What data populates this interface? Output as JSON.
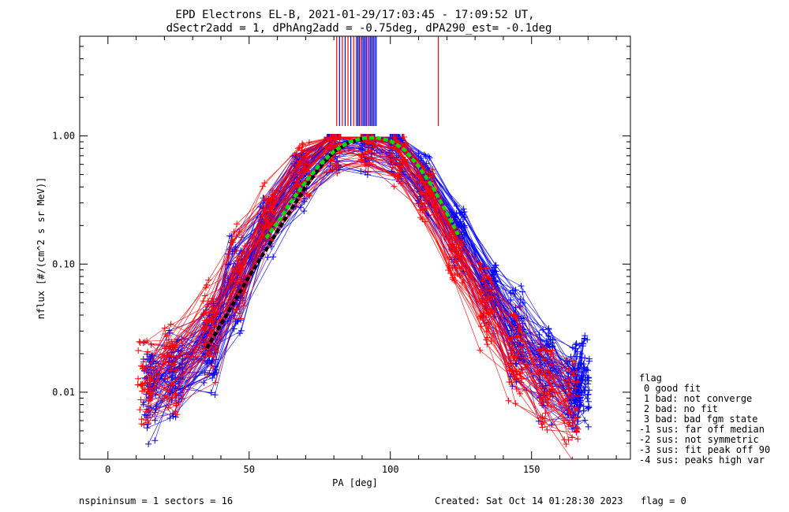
{
  "chart_data": {
    "type": "scatter",
    "title": "EPD Electrons EL-B, 2021-01-29/17:03:45 - 17:09:52 UT,",
    "subtitle": "dSectr2add = 1, dPhAng2add = -0.75deg, dPA290_est=  -0.1deg",
    "xlabel": "PA [deg]",
    "ylabel": "nflux [#/(cm^2 s sr MeV)]",
    "xlim": [
      -10,
      185
    ],
    "ylim": [
      0.003,
      6.0
    ],
    "yscale": "log",
    "x_ticks": [
      {
        "v": 0,
        "label": "0"
      },
      {
        "v": 50,
        "label": "50"
      },
      {
        "v": 100,
        "label": "100"
      },
      {
        "v": 150,
        "label": "150"
      }
    ],
    "y_ticks": [
      {
        "v": 0.01,
        "label": "0.01"
      },
      {
        "v": 0.1,
        "label": "0.10"
      },
      {
        "v": 1.0,
        "label": "1.00"
      }
    ],
    "series": [
      {
        "color": "#0000ff",
        "marker": "+",
        "x": [
          15,
          24,
          36,
          45,
          56,
          68,
          80,
          92,
          102,
          112,
          124,
          135,
          145,
          155,
          165,
          168
        ],
        "y": [
          0.01,
          0.013,
          0.022,
          0.065,
          0.19,
          0.45,
          0.85,
          0.88,
          0.72,
          0.42,
          0.16,
          0.06,
          0.025,
          0.014,
          0.01,
          0.012
        ]
      },
      {
        "color": "#ff0000",
        "marker": "+",
        "x": [
          13,
          22,
          36,
          46,
          57,
          69,
          80,
          92,
          103,
          113,
          123,
          134,
          144,
          155,
          164
        ],
        "y": [
          0.012,
          0.016,
          0.032,
          0.09,
          0.25,
          0.55,
          0.95,
          0.9,
          0.7,
          0.35,
          0.12,
          0.045,
          0.02,
          0.011,
          0.008
        ]
      }
    ],
    "fit_black": {
      "color": "#000000",
      "x": [
        35,
        40,
        45,
        50,
        55,
        60,
        65,
        70,
        75,
        80,
        85,
        90
      ],
      "y": [
        0.022,
        0.034,
        0.052,
        0.08,
        0.12,
        0.18,
        0.27,
        0.4,
        0.57,
        0.75,
        0.88,
        0.95
      ]
    },
    "fit_green": {
      "color": "#00dd00",
      "x": [
        56,
        60,
        65,
        70,
        75,
        80,
        85,
        90,
        95,
        100,
        105,
        110,
        115,
        120,
        124
      ],
      "y": [
        0.16,
        0.21,
        0.31,
        0.44,
        0.6,
        0.76,
        0.89,
        0.96,
        0.97,
        0.92,
        0.78,
        0.58,
        0.4,
        0.25,
        0.17
      ]
    },
    "peak_marks": [
      {
        "x": 81,
        "color": "#ff0000"
      },
      {
        "x": 82,
        "color": "#0000ff"
      },
      {
        "x": 83,
        "color": "#ff0000"
      },
      {
        "x": 84,
        "color": "#0000ff"
      },
      {
        "x": 85,
        "color": "#ff0000"
      },
      {
        "x": 86,
        "color": "#0000ff"
      },
      {
        "x": 87,
        "color": "#ff0000"
      },
      {
        "x": 88,
        "color": "#0000ff"
      },
      {
        "x": 88.5,
        "color": "#0000ff"
      },
      {
        "x": 89,
        "color": "#0000ff"
      },
      {
        "x": 89.5,
        "color": "#ff0000"
      },
      {
        "x": 90,
        "color": "#0000ff"
      },
      {
        "x": 90.5,
        "color": "#0000ff"
      },
      {
        "x": 91,
        "color": "#0000ff"
      },
      {
        "x": 91.5,
        "color": "#0000ff"
      },
      {
        "x": 92,
        "color": "#ff0000"
      },
      {
        "x": 92.5,
        "color": "#0000ff"
      },
      {
        "x": 93,
        "color": "#0000ff"
      },
      {
        "x": 93.5,
        "color": "#0000ff"
      },
      {
        "x": 94,
        "color": "#0000ff"
      },
      {
        "x": 94.5,
        "color": "#0000ff"
      },
      {
        "x": 95,
        "color": "#0000ff"
      },
      {
        "x": 117,
        "color": "#ff0000"
      }
    ]
  },
  "legend": {
    "title": "flag",
    "items": [
      "0 good fit",
      "1 bad: not converge",
      "2 bad: no fit",
      "3 bad: bad fgm state",
      "-1 sus: far off median",
      "-2 sus: not symmetric",
      "-3 sus: fit peak off 90",
      "-4 sus: peaks high var"
    ]
  },
  "footer": {
    "left": "nspininsum =  1  sectors = 16",
    "created": "Created: Sat Oct 14 01:28:30 2023",
    "flag": "flag = 0"
  }
}
